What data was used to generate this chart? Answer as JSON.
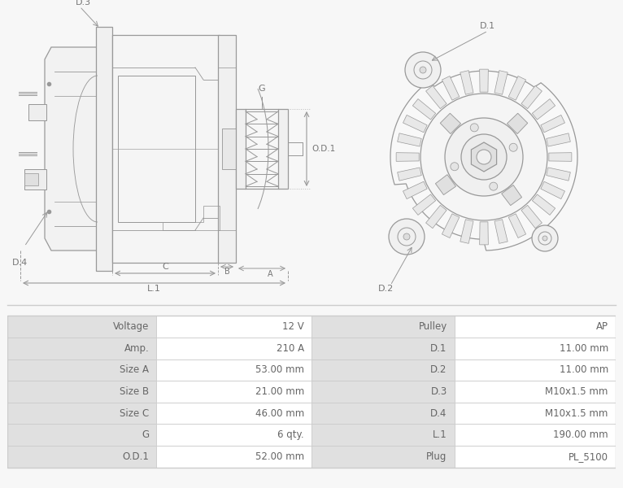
{
  "table_rows": [
    [
      "Voltage",
      "12 V",
      "Pulley",
      "AP"
    ],
    [
      "Amp.",
      "210 A",
      "D.1",
      "11.00 mm"
    ],
    [
      "Size A",
      "53.00 mm",
      "D.2",
      "11.00 mm"
    ],
    [
      "Size B",
      "21.00 mm",
      "D.3",
      "M10x1.5 mm"
    ],
    [
      "Size C",
      "46.00 mm",
      "D.4",
      "M10x1.5 mm"
    ],
    [
      "G",
      "6 qty.",
      "L.1",
      "190.00 mm"
    ],
    [
      "O.D.1",
      "52.00 mm",
      "Plug",
      "PL_5100"
    ]
  ],
  "header_bg": "#e0e0e0",
  "value_bg": "#ffffff",
  "border_color": "#cccccc",
  "text_color": "#666666",
  "font_size": 8.5,
  "bg_color": "#f7f7f7",
  "drawing_bg": "#ffffff",
  "line_color": "#999999",
  "dark_line": "#777777"
}
